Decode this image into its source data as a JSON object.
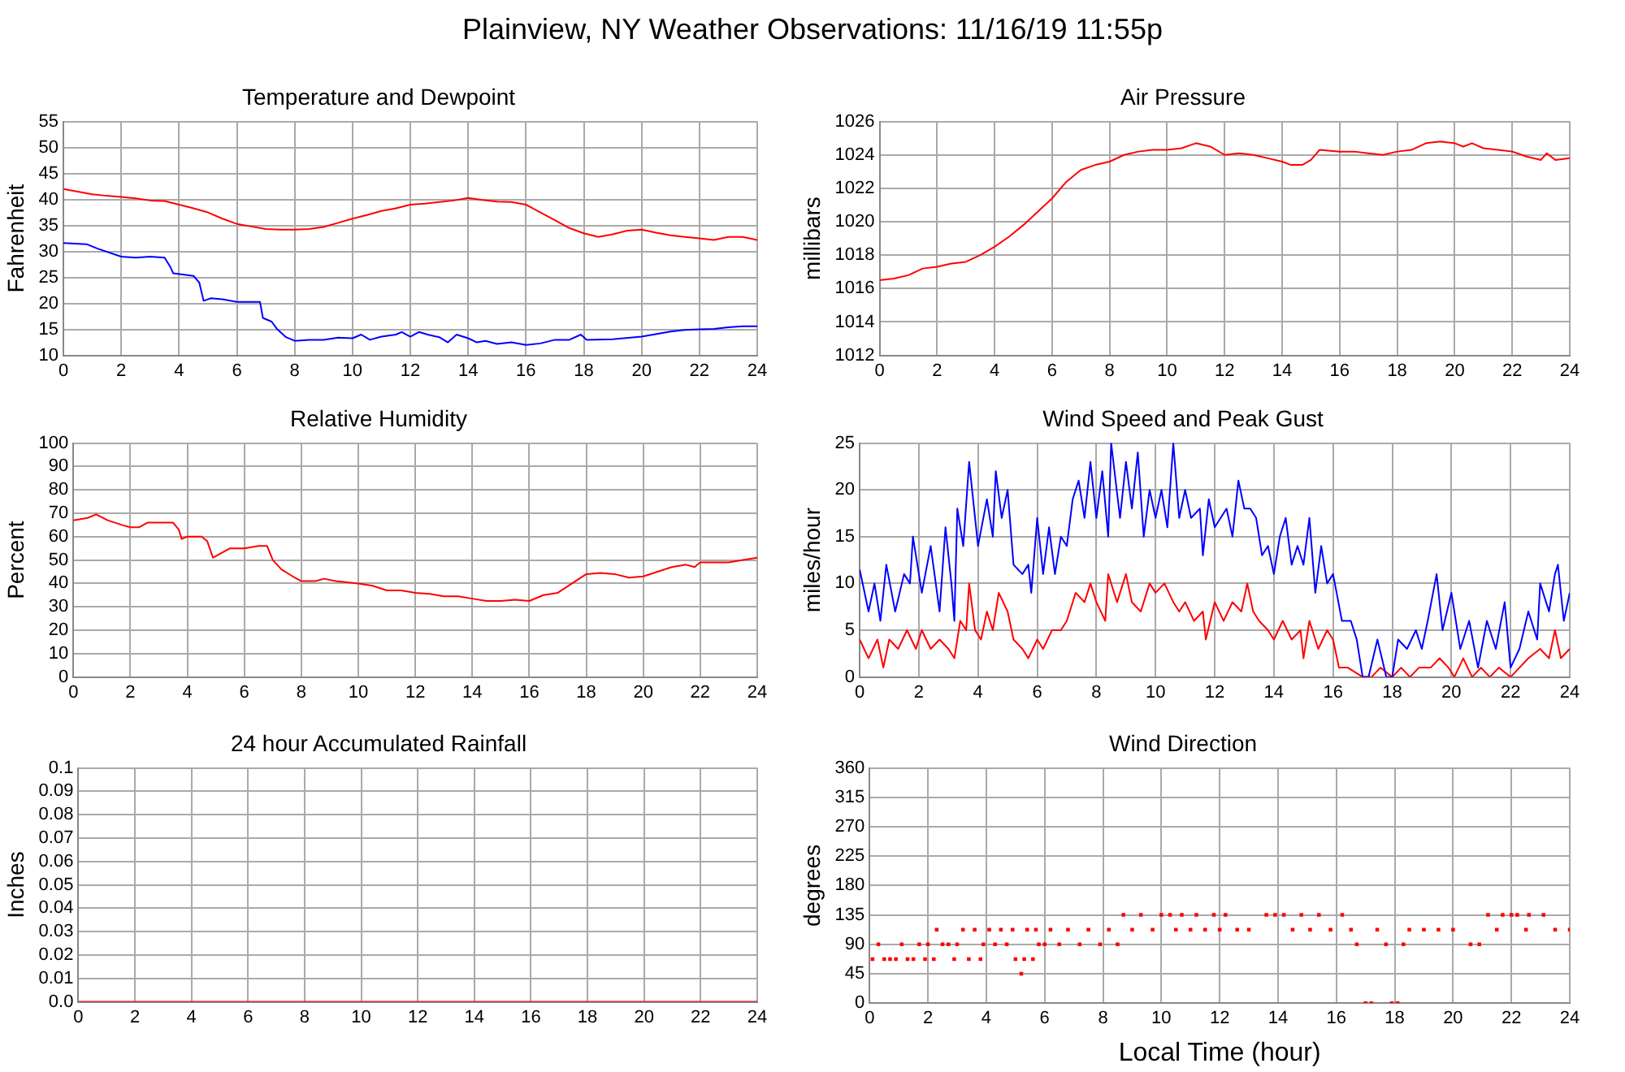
{
  "chart_data": [
    {
      "type": "line",
      "title": "Temperature and Dewpoint",
      "ylabel": "Fahrenheit",
      "annotations": [
        "Plainview, NY Weather Observations: 11/16/19 11:55p"
      ],
      "xlim": [
        0,
        24
      ],
      "xticks": [
        0,
        2,
        4,
        6,
        8,
        10,
        12,
        14,
        16,
        18,
        20,
        22,
        24
      ],
      "ylim": [
        10,
        55
      ],
      "yticks": [
        10,
        15,
        20,
        25,
        30,
        35,
        40,
        45,
        50,
        55
      ],
      "grid": true,
      "marker": "none",
      "series": [
        {
          "color": "#ff0000",
          "x": [
            0,
            0.5,
            1,
            1.5,
            2,
            2.5,
            3,
            3.5,
            4,
            4.5,
            5,
            5.5,
            6,
            6.5,
            7,
            7.5,
            8,
            8.5,
            9,
            9.5,
            10,
            10.5,
            11,
            11.5,
            12,
            12.5,
            13,
            13.5,
            14,
            14.5,
            15,
            15.5,
            16,
            16.5,
            17,
            17.5,
            18,
            18.5,
            19,
            19.5,
            20,
            20.5,
            21,
            21.5,
            22,
            22.5,
            23,
            23.5,
            24
          ],
          "values": [
            42,
            41.5,
            41,
            40.7,
            40.5,
            40.2,
            39.8,
            39.7,
            39,
            38.3,
            37.5,
            36.3,
            35.3,
            34.8,
            34.3,
            34.2,
            34.2,
            34.3,
            34.7,
            35.5,
            36.3,
            37,
            37.8,
            38.3,
            39,
            39.2,
            39.5,
            39.8,
            40.3,
            39.9,
            39.6,
            39.5,
            39,
            37.5,
            36,
            34.5,
            33.5,
            32.8,
            33.3,
            34,
            34.2,
            33.6,
            33.1,
            32.8,
            32.5,
            32.2,
            32.8,
            32.8,
            32.2
          ]
        },
        {
          "color": "#0000ff",
          "x": [
            0,
            0.8,
            1.2,
            2,
            2.5,
            3,
            3.5,
            3.7,
            3.8,
            4.5,
            4.7,
            4.85,
            5.1,
            5.5,
            6,
            6.8,
            6.9,
            7.2,
            7.4,
            7.7,
            8,
            8.5,
            9,
            9.5,
            10,
            10.3,
            10.6,
            11,
            11.5,
            11.7,
            12,
            12.3,
            12.6,
            13,
            13.3,
            13.6,
            14,
            14.3,
            14.6,
            15,
            15.5,
            16,
            16.5,
            17,
            17.5,
            17.9,
            18.1,
            19,
            20,
            21,
            21.5,
            22,
            22.5,
            23,
            23.5,
            24
          ],
          "values": [
            31.6,
            31.4,
            30.5,
            29,
            28.8,
            29,
            28.8,
            27,
            25.8,
            25.3,
            24,
            20.5,
            21,
            20.8,
            20.3,
            20.3,
            17.2,
            16.5,
            15,
            13.5,
            12.8,
            13,
            13,
            13.4,
            13.3,
            14,
            13,
            13.6,
            14,
            14.5,
            13.6,
            14.5,
            14,
            13.5,
            12.5,
            14,
            13.3,
            12.5,
            12.8,
            12.2,
            12.5,
            12,
            12.3,
            13,
            13,
            14,
            13,
            13.1,
            13.6,
            14.6,
            14.9,
            15,
            15.1,
            15.4,
            15.6,
            15.6
          ]
        }
      ]
    },
    {
      "type": "line",
      "title": "Air Pressure",
      "ylabel": "millibars",
      "xlim": [
        0,
        24
      ],
      "xticks": [
        0,
        2,
        4,
        6,
        8,
        10,
        12,
        14,
        16,
        18,
        20,
        22,
        24
      ],
      "ylim": [
        1012,
        1026
      ],
      "yticks": [
        1012,
        1014,
        1016,
        1018,
        1020,
        1022,
        1024,
        1026
      ],
      "grid": true,
      "marker": "none",
      "series": [
        {
          "color": "#ff0000",
          "x": [
            0,
            0.5,
            1,
            1.5,
            2,
            2.5,
            3,
            3.5,
            4,
            4.5,
            5,
            5.5,
            6,
            6.5,
            7,
            7.5,
            8,
            8.5,
            9,
            9.5,
            10,
            10.5,
            11,
            11.5,
            12,
            12.5,
            13,
            13.5,
            14,
            14.3,
            14.7,
            15,
            15.3,
            16,
            16.5,
            17,
            17.5,
            18,
            18.5,
            19,
            19.5,
            20,
            20.3,
            20.6,
            21,
            21.5,
            22,
            22.5,
            23,
            23.2,
            23.5,
            24
          ],
          "values": [
            1016.5,
            1016.6,
            1016.8,
            1017.2,
            1017.3,
            1017.5,
            1017.6,
            1018,
            1018.5,
            1019.1,
            1019.8,
            1020.6,
            1021.4,
            1022.4,
            1023.1,
            1023.4,
            1023.6,
            1024,
            1024.2,
            1024.3,
            1024.3,
            1024.4,
            1024.7,
            1024.5,
            1024,
            1024.1,
            1024,
            1023.8,
            1023.6,
            1023.4,
            1023.4,
            1023.7,
            1024.3,
            1024.2,
            1024.2,
            1024.1,
            1024,
            1024.2,
            1024.3,
            1024.7,
            1024.8,
            1024.7,
            1024.5,
            1024.7,
            1024.4,
            1024.3,
            1024.2,
            1023.9,
            1023.7,
            1024.1,
            1023.7,
            1023.8
          ]
        }
      ]
    },
    {
      "type": "line",
      "title": "Relative Humidity",
      "ylabel": "Percent",
      "xlim": [
        0,
        24
      ],
      "xticks": [
        0,
        2,
        4,
        6,
        8,
        10,
        12,
        14,
        16,
        18,
        20,
        22,
        24
      ],
      "ylim": [
        0,
        100
      ],
      "yticks": [
        0,
        10,
        20,
        30,
        40,
        50,
        60,
        70,
        80,
        90,
        100
      ],
      "grid": true,
      "marker": "none",
      "series": [
        {
          "color": "#ff0000",
          "x": [
            0,
            0.5,
            0.8,
            1.2,
            1.7,
            2,
            2.3,
            2.6,
            3,
            3.5,
            3.7,
            3.8,
            4,
            4.5,
            4.7,
            4.9,
            5.2,
            5.5,
            6,
            6.5,
            6.8,
            7,
            7.3,
            7.7,
            8,
            8.5,
            8.8,
            9.2,
            10,
            10.5,
            11,
            11.5,
            12,
            12.5,
            13,
            13.5,
            14,
            14.5,
            15,
            15.5,
            16,
            16.5,
            17,
            17.5,
            18,
            18.5,
            19,
            19.5,
            20,
            20.5,
            21,
            21.5,
            21.8,
            22,
            23,
            23.5,
            24
          ],
          "values": [
            67,
            68,
            69.5,
            67,
            65,
            64,
            64,
            66,
            66,
            66,
            63,
            59,
            60,
            60,
            58,
            51,
            53,
            55,
            55,
            56,
            56,
            50,
            46,
            43,
            41,
            41,
            42,
            41,
            40,
            39,
            37,
            37,
            36,
            35.5,
            34.5,
            34.5,
            33.5,
            32.5,
            32.5,
            33,
            32.5,
            35,
            36,
            40,
            44,
            44.5,
            44,
            42.5,
            43,
            45,
            47,
            48,
            47,
            49,
            49,
            50,
            51
          ]
        }
      ]
    },
    {
      "type": "line",
      "title": "Wind Speed and Peak Gust",
      "ylabel": "miles/hour",
      "xlim": [
        0,
        24
      ],
      "xticks": [
        0,
        2,
        4,
        6,
        8,
        10,
        12,
        14,
        16,
        18,
        20,
        22,
        24
      ],
      "ylim": [
        0,
        25
      ],
      "yticks": [
        0,
        5,
        10,
        15,
        20,
        25
      ],
      "grid": true,
      "marker": "none",
      "series": [
        {
          "color": "#0000ff",
          "x": [
            0,
            0.3,
            0.5,
            0.7,
            0.9,
            1.2,
            1.5,
            1.7,
            1.8,
            2.1,
            2.4,
            2.7,
            2.9,
            3.1,
            3.2,
            3.3,
            3.5,
            3.7,
            4,
            4.3,
            4.5,
            4.6,
            4.8,
            5,
            5.2,
            5.5,
            5.7,
            5.8,
            6,
            6.2,
            6.4,
            6.6,
            6.8,
            7,
            7.2,
            7.4,
            7.6,
            7.8,
            8,
            8.2,
            8.4,
            8.5,
            8.8,
            9,
            9.2,
            9.4,
            9.6,
            9.8,
            10,
            10.2,
            10.4,
            10.6,
            10.8,
            11,
            11.2,
            11.5,
            11.6,
            11.8,
            12,
            12.2,
            12.4,
            12.6,
            12.8,
            13,
            13.2,
            13.4,
            13.6,
            13.8,
            14,
            14.2,
            14.4,
            14.6,
            14.8,
            15,
            15.2,
            15.4,
            15.6,
            15.8,
            16,
            16.3,
            16.6,
            16.8,
            17,
            17.2,
            17.5,
            17.8,
            18,
            18.2,
            18.5,
            18.8,
            19,
            19.2,
            19.5,
            19.7,
            20,
            20.3,
            20.6,
            20.9,
            21.2,
            21.5,
            21.8,
            22,
            22.3,
            22.6,
            22.9,
            23,
            23.3,
            23.5,
            23.6,
            23.8,
            24
          ],
          "values": [
            11.5,
            7,
            10,
            6,
            12,
            7,
            11,
            10,
            15,
            9,
            14,
            7,
            16,
            10,
            6,
            18,
            14,
            23,
            14,
            19,
            15,
            22,
            17,
            20,
            12,
            11,
            12,
            9,
            17,
            11,
            16,
            11,
            15,
            14,
            19,
            21,
            17,
            23,
            17,
            22,
            15,
            25,
            17,
            23,
            18,
            24,
            15,
            20,
            17,
            20,
            16,
            25,
            17,
            20,
            17,
            18,
            13,
            19,
            16,
            17,
            18,
            15,
            21,
            18,
            18,
            17,
            13,
            14,
            11,
            15,
            17,
            12,
            14,
            12,
            17,
            9,
            14,
            10,
            11,
            6,
            6,
            4,
            0,
            0,
            4,
            0,
            0,
            4,
            3,
            5,
            3,
            6,
            11,
            5,
            9,
            3,
            6,
            1,
            6,
            3,
            8,
            1,
            3,
            7,
            4,
            10,
            7,
            11,
            12,
            6,
            9
          ]
        },
        {
          "color": "#ff0000",
          "x": [
            0,
            0.3,
            0.6,
            0.8,
            1,
            1.3,
            1.6,
            1.9,
            2.1,
            2.4,
            2.7,
            3,
            3.2,
            3.4,
            3.6,
            3.7,
            3.9,
            4.1,
            4.3,
            4.5,
            4.7,
            5,
            5.2,
            5.5,
            5.7,
            6,
            6.2,
            6.5,
            6.8,
            7,
            7.2,
            7.3,
            7.6,
            7.8,
            8,
            8.3,
            8.4,
            8.7,
            9,
            9.2,
            9.5,
            9.8,
            10,
            10.3,
            10.6,
            10.8,
            11,
            11.3,
            11.6,
            11.7,
            12,
            12.3,
            12.6,
            12.9,
            13.1,
            13.3,
            13.5,
            13.8,
            14,
            14.3,
            14.6,
            14.9,
            15,
            15.2,
            15.5,
            15.8,
            16,
            16.2,
            16.5,
            17,
            17.3,
            17.6,
            18,
            18.3,
            18.6,
            18.9,
            19.3,
            19.6,
            19.9,
            20.1,
            20.4,
            20.7,
            21,
            21.3,
            21.6,
            22,
            22.3,
            22.6,
            23,
            23.3,
            23.5,
            23.7,
            24
          ],
          "values": [
            4,
            2,
            4,
            1,
            4,
            3,
            5,
            3,
            5,
            3,
            4,
            3,
            2,
            6,
            5,
            10,
            5,
            4,
            7,
            5,
            9,
            7,
            4,
            3,
            2,
            4,
            3,
            5,
            5,
            6,
            8,
            9,
            8,
            10,
            8,
            6,
            11,
            8,
            11,
            8,
            7,
            10,
            9,
            10,
            8,
            7,
            8,
            6,
            7,
            4,
            8,
            6,
            8,
            7,
            10,
            7,
            6,
            5,
            4,
            6,
            4,
            5,
            2,
            6,
            3,
            5,
            4,
            1,
            1,
            0,
            0,
            1,
            0,
            1,
            0,
            1,
            1,
            2,
            1,
            0,
            2,
            0,
            1,
            0,
            1,
            0,
            1,
            2,
            3,
            2,
            5,
            2,
            3
          ]
        }
      ]
    },
    {
      "type": "line",
      "title": "24 hour Accumulated Rainfall",
      "ylabel": "Inches",
      "xlim": [
        0,
        24
      ],
      "xticks": [
        0,
        2,
        4,
        6,
        8,
        10,
        12,
        14,
        16,
        18,
        20,
        22,
        24
      ],
      "ylim": [
        0,
        0.1
      ],
      "yticks": [
        {
          "value": 0,
          "label": "0.0"
        },
        0.01,
        0.02,
        0.03,
        0.04,
        0.05,
        0.06,
        0.07,
        0.08,
        0.09,
        0.1
      ],
      "grid": true,
      "marker": "none",
      "series": [
        {
          "color": "#ff0000",
          "x": [
            0,
            24
          ],
          "values": [
            0,
            0
          ]
        }
      ]
    },
    {
      "type": "scatter",
      "title": "Wind Direction",
      "ylabel": "degrees",
      "xlabel": "Local Time (hour)",
      "xlim": [
        0,
        24
      ],
      "xticks": [
        0,
        2,
        4,
        6,
        8,
        10,
        12,
        14,
        16,
        18,
        20,
        22,
        24
      ],
      "ylim": [
        0,
        360
      ],
      "yticks": [
        0,
        45,
        90,
        135,
        180,
        225,
        270,
        315,
        360
      ],
      "grid": true,
      "marker": "square",
      "series": [
        {
          "color": "#ff0000",
          "x": [
            0.1,
            0.3,
            0.5,
            0.7,
            0.9,
            1.1,
            1.3,
            1.5,
            1.7,
            1.9,
            2,
            2.2,
            2.3,
            2.5,
            2.7,
            2.9,
            3,
            3.2,
            3.4,
            3.6,
            3.8,
            3.9,
            4.1,
            4.3,
            4.5,
            4.7,
            4.9,
            5,
            5.2,
            5.3,
            5.4,
            5.6,
            5.7,
            5.8,
            6,
            6.2,
            6.5,
            6.8,
            7.2,
            7.5,
            7.9,
            8.2,
            8.5,
            8.7,
            9,
            9.3,
            9.7,
            10,
            10.3,
            10.5,
            10.7,
            11,
            11.2,
            11.5,
            11.8,
            12,
            12.2,
            12.6,
            13,
            13.6,
            13.9,
            14.2,
            14.5,
            14.8,
            15.1,
            15.4,
            15.8,
            16.2,
            16.5,
            16.7,
            17,
            17.2,
            17.4,
            17.7,
            17.9,
            18.1,
            18.3,
            18.5,
            19,
            19.5,
            20,
            20.6,
            20.9,
            21.2,
            21.5,
            21.7,
            22,
            22.2,
            22.5,
            22.6,
            23.1,
            23.5,
            24
          ],
          "values": [
            67.5,
            90,
            67.5,
            67.5,
            67.5,
            90,
            67.5,
            67.5,
            90,
            67.5,
            90,
            67.5,
            112.5,
            90,
            90,
            67.5,
            90,
            112.5,
            67.5,
            112.5,
            67.5,
            90,
            112.5,
            90,
            112.5,
            90,
            112.5,
            67.5,
            45,
            67.5,
            112.5,
            67.5,
            112.5,
            90,
            90,
            112.5,
            90,
            112.5,
            90,
            112.5,
            90,
            112.5,
            90,
            135,
            112.5,
            135,
            112.5,
            135,
            135,
            112.5,
            135,
            112.5,
            135,
            112.5,
            135,
            112.5,
            135,
            112.5,
            112.5,
            135,
            135,
            135,
            112.5,
            135,
            112.5,
            135,
            112.5,
            135,
            112.5,
            90,
            0,
            0,
            112.5,
            90,
            0,
            0,
            90,
            112.5,
            112.5,
            112.5,
            112.5,
            90,
            90,
            135,
            112.5,
            135,
            135,
            135,
            112.5,
            135,
            135,
            112.5,
            112.5
          ]
        }
      ]
    }
  ]
}
